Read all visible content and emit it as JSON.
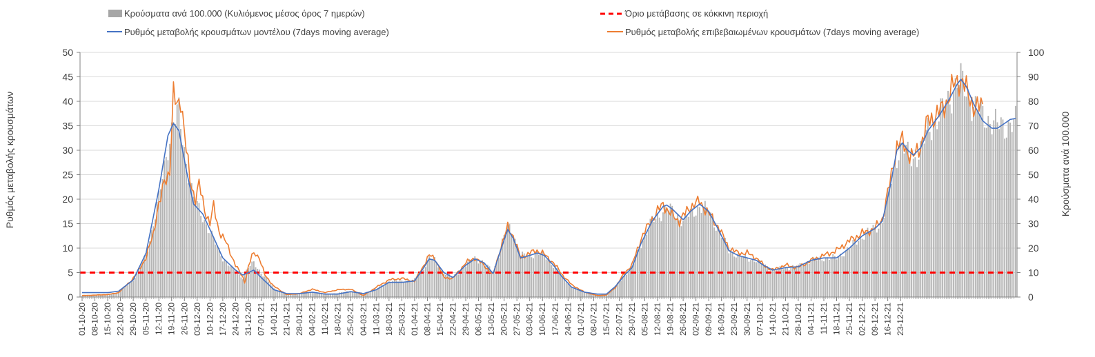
{
  "chart_data": {
    "type": "bar+line",
    "legend": [
      {
        "key": "cases",
        "label": "Κρούσματα ανά 100.000 (Κυλιόμενος μέσος όρος 7 ημερών)",
        "color": "#a6a6a6",
        "kind": "bar"
      },
      {
        "key": "threshold",
        "label": "Όριο μετάβασης σε κόκκινη περιοχή",
        "color": "#ff0000",
        "kind": "dash"
      },
      {
        "key": "model",
        "label": "Ρυθμός μεταβολής κρουσμάτων μοντέλου (7days moving average)",
        "color": "#4472c4",
        "kind": "line"
      },
      {
        "key": "confirmed",
        "label": "Ρυθμός μεταβολής επιβεβαιωμένων κρουσμάτων (7days moving average)",
        "color": "#ed7d31",
        "kind": "line"
      }
    ],
    "ylabel_left": "Ρυθμός μεταβολής κρουσμάτων",
    "ylabel_right": "Κρούσματα ανά 100.000",
    "ylim_left": [
      0,
      50
    ],
    "ylim_right": [
      0,
      100
    ],
    "yticks_left": [
      "0",
      "5",
      "10",
      "15",
      "20",
      "25",
      "30",
      "35",
      "40",
      "45",
      "50"
    ],
    "yticks_right": [
      "0",
      "10",
      "20",
      "30",
      "40",
      "50",
      "60",
      "70",
      "80",
      "90",
      "100"
    ],
    "threshold_value": 5,
    "x_start": "01-10-20",
    "x_end": "23-12-21",
    "x_ticks": [
      "01-10-20",
      "08-10-20",
      "15-10-20",
      "22-10-20",
      "29-10-20",
      "05-11-20",
      "12-11-20",
      "19-11-20",
      "26-11-20",
      "03-12-20",
      "10-12-20",
      "17-12-20",
      "24-12-20",
      "31-12-20",
      "07-01-21",
      "14-01-21",
      "21-01-21",
      "28-01-21",
      "04-02-21",
      "11-02-21",
      "18-02-21",
      "25-02-21",
      "04-03-21",
      "11-03-21",
      "18-03-21",
      "25-03-21",
      "01-04-21",
      "08-04-21",
      "15-04-21",
      "22-04-21",
      "29-04-21",
      "06-05-21",
      "13-05-21",
      "20-05-21",
      "27-05-21",
      "03-06-21",
      "10-06-21",
      "17-06-21",
      "24-06-21",
      "01-07-21",
      "08-07-21",
      "15-07-21",
      "22-07-21",
      "29-07-21",
      "05-08-21",
      "12-08-21",
      "19-08-21",
      "26-08-21",
      "02-09-21",
      "09-09-21",
      "16-09-21",
      "23-09-21",
      "30-09-21",
      "07-10-21",
      "14-10-21",
      "21-10-21",
      "28-10-21",
      "04-11-21",
      "11-11-21",
      "18-11-21",
      "25-11-21",
      "02-12-21",
      "09-12-21",
      "16-12-21",
      "23-12-21"
    ],
    "model_keypoints": [
      [
        0,
        0.9
      ],
      [
        7,
        0.9
      ],
      [
        14,
        0.9
      ],
      [
        20,
        1.2
      ],
      [
        28,
        3.5
      ],
      [
        35,
        9
      ],
      [
        42,
        22
      ],
      [
        47,
        33
      ],
      [
        50,
        35.5
      ],
      [
        53,
        34
      ],
      [
        57,
        26
      ],
      [
        61,
        19
      ],
      [
        66,
        17
      ],
      [
        71,
        13
      ],
      [
        77,
        8
      ],
      [
        84,
        5.5
      ],
      [
        88,
        4.5
      ],
      [
        91,
        5
      ],
      [
        94,
        5.5
      ],
      [
        98,
        4
      ],
      [
        105,
        1.5
      ],
      [
        112,
        0.7
      ],
      [
        119,
        0.7
      ],
      [
        126,
        1
      ],
      [
        133,
        0.6
      ],
      [
        140,
        0.6
      ],
      [
        147,
        1.1
      ],
      [
        154,
        0.7
      ],
      [
        161,
        1.5
      ],
      [
        168,
        3
      ],
      [
        175,
        3
      ],
      [
        182,
        3.3
      ],
      [
        187,
        6
      ],
      [
        190,
        7.8
      ],
      [
        193,
        7.5
      ],
      [
        198,
        5
      ],
      [
        203,
        4
      ],
      [
        210,
        6.5
      ],
      [
        215,
        7.8
      ],
      [
        220,
        7
      ],
      [
        225,
        4.8
      ],
      [
        229,
        9.5
      ],
      [
        233,
        13.8
      ],
      [
        236,
        12
      ],
      [
        240,
        8
      ],
      [
        245,
        8.5
      ],
      [
        249,
        9
      ],
      [
        253,
        8.5
      ],
      [
        258,
        6.5
      ],
      [
        263,
        4
      ],
      [
        268,
        2
      ],
      [
        275,
        1
      ],
      [
        282,
        0.6
      ],
      [
        287,
        0.6
      ],
      [
        292,
        2.2
      ],
      [
        297,
        4.5
      ],
      [
        301,
        6
      ],
      [
        306,
        11
      ],
      [
        312,
        15.5
      ],
      [
        318,
        18.5
      ],
      [
        320,
        18.8
      ],
      [
        323,
        18
      ],
      [
        329,
        15.8
      ],
      [
        333,
        17.5
      ],
      [
        338,
        19
      ],
      [
        343,
        17.5
      ],
      [
        348,
        14
      ],
      [
        354,
        9.5
      ],
      [
        359,
        8.5
      ],
      [
        364,
        8
      ],
      [
        369,
        7.5
      ],
      [
        373,
        6.5
      ],
      [
        378,
        5.5
      ],
      [
        385,
        6
      ],
      [
        392,
        6.2
      ],
      [
        399,
        7.5
      ],
      [
        406,
        8
      ],
      [
        413,
        8
      ],
      [
        420,
        10
      ],
      [
        427,
        12.5
      ],
      [
        434,
        14
      ],
      [
        438,
        15.5
      ],
      [
        442,
        22
      ],
      [
        446,
        30
      ],
      [
        449,
        31.5
      ],
      [
        452,
        30
      ],
      [
        455,
        29
      ],
      [
        459,
        30.5
      ],
      [
        463,
        34
      ],
      [
        469,
        37
      ],
      [
        474,
        40
      ],
      [
        479,
        43.5
      ],
      [
        481,
        44.5
      ],
      [
        484,
        43
      ],
      [
        488,
        39.5
      ],
      [
        493,
        36
      ],
      [
        498,
        34.5
      ],
      [
        501,
        34.5
      ],
      [
        505,
        35.5
      ],
      [
        508,
        36.3
      ],
      [
        511,
        36.5
      ]
    ],
    "confirmed_keypoints": [
      [
        0,
        0.3
      ],
      [
        7,
        0.4
      ],
      [
        14,
        0.5
      ],
      [
        20,
        0.9
      ],
      [
        28,
        3.8
      ],
      [
        35,
        8
      ],
      [
        39,
        13
      ],
      [
        41,
        17.5
      ],
      [
        43,
        20
      ],
      [
        45,
        23.5
      ],
      [
        48,
        26
      ],
      [
        50,
        41
      ],
      [
        52,
        39
      ],
      [
        54,
        41
      ],
      [
        57,
        30
      ],
      [
        59,
        24
      ],
      [
        62,
        20
      ],
      [
        64,
        23
      ],
      [
        67,
        18
      ],
      [
        70,
        15
      ],
      [
        72,
        18.5
      ],
      [
        75,
        13.5
      ],
      [
        79,
        11
      ],
      [
        84,
        6.5
      ],
      [
        88,
        4
      ],
      [
        89,
        3
      ],
      [
        91,
        6
      ],
      [
        93,
        8.5
      ],
      [
        95,
        9
      ],
      [
        97,
        8
      ],
      [
        100,
        4.5
      ],
      [
        105,
        2.2
      ],
      [
        112,
        0.5
      ],
      [
        119,
        0.7
      ],
      [
        126,
        1.6
      ],
      [
        133,
        0.9
      ],
      [
        140,
        1.5
      ],
      [
        147,
        1.6
      ],
      [
        154,
        0.3
      ],
      [
        161,
        2
      ],
      [
        168,
        3.5
      ],
      [
        175,
        3.8
      ],
      [
        182,
        3.2
      ],
      [
        187,
        6.5
      ],
      [
        190,
        8.5
      ],
      [
        193,
        8
      ],
      [
        198,
        4
      ],
      [
        203,
        3.8
      ],
      [
        210,
        7
      ],
      [
        215,
        8
      ],
      [
        220,
        6.5
      ],
      [
        225,
        4.5
      ],
      [
        229,
        10
      ],
      [
        233,
        14.3
      ],
      [
        236,
        12.5
      ],
      [
        240,
        8
      ],
      [
        245,
        9
      ],
      [
        249,
        9.5
      ],
      [
        252,
        9
      ],
      [
        258,
        7
      ],
      [
        263,
        4.5
      ],
      [
        268,
        2.5
      ],
      [
        275,
        1
      ],
      [
        282,
        0.3
      ],
      [
        287,
        0.4
      ],
      [
        292,
        2
      ],
      [
        297,
        5
      ],
      [
        301,
        6.5
      ],
      [
        306,
        12
      ],
      [
        312,
        16
      ],
      [
        318,
        19
      ],
      [
        322,
        17
      ],
      [
        327,
        15.5
      ],
      [
        333,
        18.5
      ],
      [
        338,
        19.5
      ],
      [
        343,
        17
      ],
      [
        348,
        14.5
      ],
      [
        354,
        10
      ],
      [
        359,
        9
      ],
      [
        364,
        9
      ],
      [
        369,
        8
      ],
      [
        373,
        6.5
      ],
      [
        378,
        5.5
      ],
      [
        385,
        6.5
      ],
      [
        392,
        6
      ],
      [
        399,
        7.5
      ],
      [
        406,
        8.5
      ],
      [
        413,
        9.5
      ],
      [
        420,
        11.5
      ],
      [
        427,
        13
      ],
      [
        434,
        14
      ],
      [
        438,
        16
      ],
      [
        442,
        23
      ],
      [
        446,
        31
      ],
      [
        449,
        31.8
      ],
      [
        452,
        29.5
      ],
      [
        455,
        28.5
      ],
      [
        459,
        31
      ],
      [
        463,
        36
      ],
      [
        469,
        37.5
      ],
      [
        474,
        40.5
      ],
      [
        478,
        44
      ],
      [
        480,
        44.5
      ],
      [
        482,
        43.5
      ],
      [
        486,
        41
      ],
      [
        489,
        38
      ],
      [
        493,
        39.8
      ]
    ],
    "cases_keypoints": [
      [
        0,
        0.5
      ],
      [
        7,
        1
      ],
      [
        14,
        1
      ],
      [
        20,
        2
      ],
      [
        28,
        7
      ],
      [
        35,
        17
      ],
      [
        42,
        40
      ],
      [
        47,
        62
      ],
      [
        50,
        72
      ],
      [
        53,
        75
      ],
      [
        57,
        55
      ],
      [
        61,
        40
      ],
      [
        66,
        33
      ],
      [
        71,
        25
      ],
      [
        77,
        16
      ],
      [
        84,
        10
      ],
      [
        88,
        8
      ],
      [
        91,
        12
      ],
      [
        94,
        14
      ],
      [
        98,
        10
      ],
      [
        105,
        3.5
      ],
      [
        112,
        1.2
      ],
      [
        119,
        1.5
      ],
      [
        126,
        2.2
      ],
      [
        133,
        1.3
      ],
      [
        140,
        1.6
      ],
      [
        147,
        2.5
      ],
      [
        154,
        1.6
      ],
      [
        161,
        3.2
      ],
      [
        168,
        6.5
      ],
      [
        175,
        6.5
      ],
      [
        182,
        7
      ],
      [
        187,
        12
      ],
      [
        190,
        16
      ],
      [
        193,
        15
      ],
      [
        198,
        10
      ],
      [
        203,
        8
      ],
      [
        210,
        13
      ],
      [
        215,
        16
      ],
      [
        220,
        14
      ],
      [
        225,
        10
      ],
      [
        229,
        20
      ],
      [
        233,
        29
      ],
      [
        236,
        26
      ],
      [
        240,
        17
      ],
      [
        245,
        17
      ],
      [
        249,
        18
      ],
      [
        253,
        17
      ],
      [
        258,
        13
      ],
      [
        263,
        8
      ],
      [
        268,
        4
      ],
      [
        275,
        2
      ],
      [
        282,
        1
      ],
      [
        287,
        1.2
      ],
      [
        292,
        4.5
      ],
      [
        297,
        9
      ],
      [
        301,
        12
      ],
      [
        306,
        22
      ],
      [
        312,
        31
      ],
      [
        318,
        35
      ],
      [
        320,
        36
      ],
      [
        323,
        35
      ],
      [
        329,
        31
      ],
      [
        333,
        34
      ],
      [
        338,
        37
      ],
      [
        343,
        35
      ],
      [
        348,
        28
      ],
      [
        354,
        19
      ],
      [
        359,
        17
      ],
      [
        364,
        16
      ],
      [
        369,
        15
      ],
      [
        373,
        13
      ],
      [
        378,
        11
      ],
      [
        385,
        12
      ],
      [
        392,
        12.5
      ],
      [
        399,
        15
      ],
      [
        406,
        16
      ],
      [
        413,
        16
      ],
      [
        420,
        20
      ],
      [
        427,
        25
      ],
      [
        434,
        28
      ],
      [
        438,
        31
      ],
      [
        442,
        44
      ],
      [
        446,
        58
      ],
      [
        449,
        62
      ],
      [
        452,
        58
      ],
      [
        455,
        56
      ],
      [
        459,
        60
      ],
      [
        463,
        68
      ],
      [
        469,
        74
      ],
      [
        474,
        80
      ],
      [
        479,
        88
      ],
      [
        481,
        88
      ],
      [
        484,
        84
      ],
      [
        488,
        78
      ],
      [
        493,
        74
      ],
      [
        498,
        72
      ],
      [
        501,
        70
      ],
      [
        505,
        70
      ],
      [
        508,
        71
      ],
      [
        511,
        71
      ]
    ]
  }
}
